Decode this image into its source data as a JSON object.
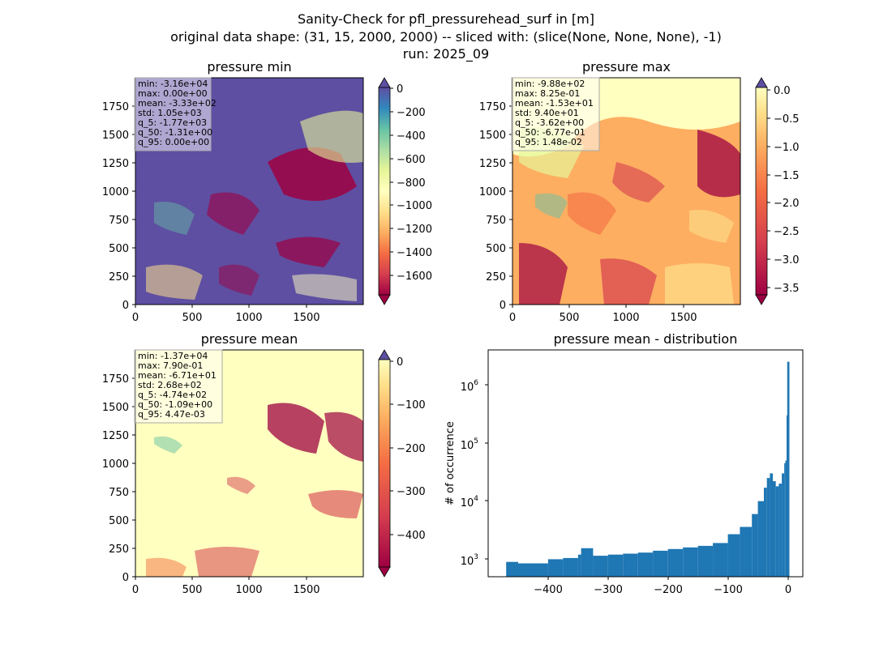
{
  "figure": {
    "title_lines": [
      "Sanity-Check for pfl_pressurehead_surf in [m]",
      "original data shape: (31, 15, 2000, 2000) -- sliced with: (slice(None, None, None), -1)",
      "run: 2025_09"
    ]
  },
  "chart_data": [
    {
      "type": "heatmap",
      "title": "pressure min",
      "x_ticks": [
        "0",
        "500",
        "1000",
        "1500"
      ],
      "x_tick_values": [
        0,
        500,
        1000,
        1500
      ],
      "y_ticks": [
        "0",
        "250",
        "500",
        "750",
        "1000",
        "1250",
        "1500",
        "1750"
      ],
      "y_tick_values": [
        0,
        250,
        500,
        750,
        1000,
        1250,
        1500,
        1750
      ],
      "xlim": [
        0,
        2000
      ],
      "ylim": [
        0,
        2000
      ],
      "colormap": "Spectral",
      "colorbar": {
        "range": [
          -1750,
          0
        ],
        "extend": "both",
        "ticks": [
          "0",
          "−200",
          "−400",
          "−600",
          "−800",
          "−1000",
          "−1200",
          "−1400",
          "−1600"
        ],
        "tick_values": [
          0,
          -200,
          -400,
          -600,
          -800,
          -1000,
          -1200,
          -1400,
          -1600
        ]
      },
      "stats": [
        "min: -3.16e+04",
        "max: 0.00e+00",
        "mean: -3.33e+02",
        "std: 1.05e+03",
        "q_5: -1.77e+03",
        "q_50: -1.31e+00",
        "q_95: 0.00e+00"
      ]
    },
    {
      "type": "heatmap",
      "title": "pressure max",
      "x_ticks": [
        "0",
        "500",
        "1000",
        "1500"
      ],
      "x_tick_values": [
        0,
        500,
        1000,
        1500
      ],
      "y_ticks": [
        "0",
        "250",
        "500",
        "750",
        "1000",
        "1250",
        "1500",
        "1750"
      ],
      "y_tick_values": [
        0,
        250,
        500,
        750,
        1000,
        1250,
        1500,
        1750
      ],
      "xlim": [
        0,
        2000
      ],
      "ylim": [
        0,
        2000
      ],
      "colormap": "Spectral",
      "colorbar": {
        "range": [
          -3.65,
          0
        ],
        "extend": "both",
        "ticks": [
          "0.0",
          "−0.5",
          "−1.0",
          "−1.5",
          "−2.0",
          "−2.5",
          "−3.0",
          "−3.5"
        ],
        "tick_values": [
          0,
          -0.5,
          -1.0,
          -1.5,
          -2.0,
          -2.5,
          -3.0,
          -3.5
        ]
      },
      "stats": [
        "min: -9.88e+02",
        "max: 8.25e-01",
        "mean: -1.53e+01",
        "std: 9.40e+01",
        "q_5: -3.62e+00",
        "q_50: -6.77e-01",
        "q_95: 1.48e-02"
      ]
    },
    {
      "type": "heatmap",
      "title": "pressure mean",
      "x_ticks": [
        "0",
        "500",
        "1000",
        "1500"
      ],
      "x_tick_values": [
        0,
        500,
        1000,
        1500
      ],
      "y_ticks": [
        "0",
        "250",
        "500",
        "750",
        "1000",
        "1250",
        "1500",
        "1750"
      ],
      "y_tick_values": [
        0,
        250,
        500,
        750,
        1000,
        1250,
        1500,
        1750
      ],
      "xlim": [
        0,
        2000
      ],
      "ylim": [
        0,
        2000
      ],
      "colormap": "Spectral",
      "colorbar": {
        "range": [
          -474,
          0
        ],
        "extend": "both",
        "ticks": [
          "0",
          "−100",
          "−200",
          "−300",
          "−400"
        ],
        "tick_values": [
          0,
          -100,
          -200,
          -300,
          -400
        ]
      },
      "stats": [
        "min: -1.37e+04",
        "max: 7.90e-01",
        "mean: -6.71e+01",
        "std: 2.68e+02",
        "q_5: -4.74e+02",
        "q_50: -1.09e+00",
        "q_95: 4.47e-03"
      ]
    },
    {
      "type": "bar",
      "title": "pressure mean - distribution",
      "ylabel": "# of occurrence",
      "xlabel": "",
      "y_scale": "log",
      "xlim": [
        -500,
        25
      ],
      "ylim": [
        500,
        4000000
      ],
      "x_ticks": [
        "−400",
        "−300",
        "−200",
        "−100",
        "0"
      ],
      "x_tick_values": [
        -400,
        -300,
        -200,
        -100,
        0
      ],
      "y_ticks": [
        "10",
        "10",
        "10",
        "10"
      ],
      "y_tick_exponents": [
        "3",
        "4",
        "5",
        "6"
      ],
      "y_tick_values": [
        1000,
        10000,
        100000,
        1000000
      ],
      "bar_color": "#1f77b4",
      "x": [
        -470,
        -450,
        -425,
        -400,
        -375,
        -350,
        -345,
        -325,
        -300,
        -275,
        -250,
        -225,
        -200,
        -175,
        -150,
        -125,
        -100,
        -80,
        -60,
        -50,
        -40,
        -35,
        -30,
        -25,
        -20,
        -15,
        -10,
        -6,
        -4,
        -2,
        -1,
        0
      ],
      "values": [
        900,
        850,
        850,
        1000,
        1050,
        1200,
        1550,
        1150,
        1200,
        1250,
        1300,
        1400,
        1500,
        1600,
        1700,
        1900,
        2700,
        3600,
        6000,
        10000,
        17000,
        25000,
        30000,
        22000,
        18000,
        20000,
        30000,
        45000,
        50000,
        300000,
        2500000,
        2500000
      ]
    }
  ]
}
